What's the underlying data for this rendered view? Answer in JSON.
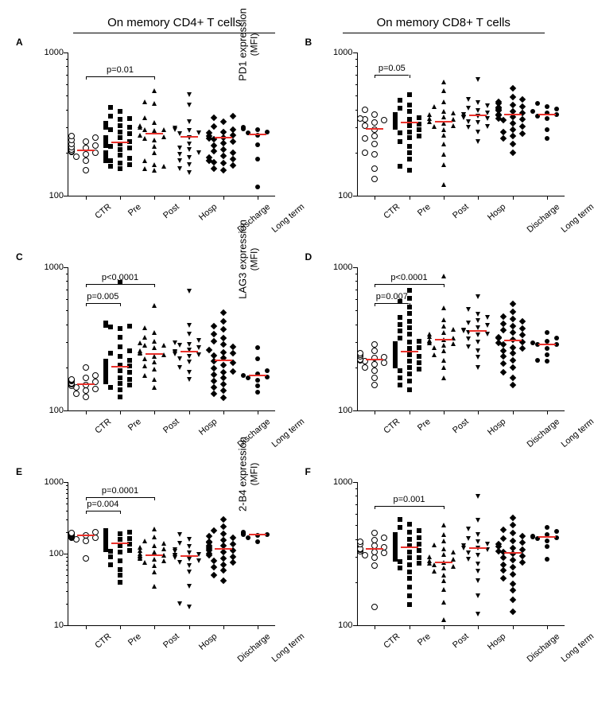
{
  "headers": {
    "left": "On memory CD4+ T cells",
    "right": "On memory CD8+ T cells"
  },
  "common": {
    "categories": [
      "CTR",
      "Pre",
      "Post",
      "Hosp",
      "Discharge",
      "Long term"
    ],
    "median_color": "#e8302a",
    "tick_fontsize": 11,
    "label_fontsize": 13
  },
  "markers": [
    {
      "type": "open-circle"
    },
    {
      "type": "square"
    },
    {
      "type": "triangle-up"
    },
    {
      "type": "triangle-down"
    },
    {
      "type": "diamond"
    },
    {
      "type": "circle"
    }
  ],
  "panels": [
    {
      "id": "A",
      "ylabel_main": "PD1 expression",
      "ylabel_sub": "(MFI)",
      "ylim": [
        100,
        1000
      ],
      "yticks": [
        100,
        1000
      ],
      "pvalues": [
        {
          "from": 0,
          "to": 2,
          "text": "p=0.01",
          "y": 680
        }
      ],
      "data": [
        {
          "values": [
            200,
            215,
            202,
            188,
            225,
            245,
            260,
            255,
            195,
            175,
            210,
            205,
            150,
            240,
            218,
            230
          ],
          "median": 207
        },
        {
          "values": [
            210,
            235,
            255,
            280,
            300,
            310,
            345,
            360,
            390,
            415,
            165,
            155,
            170,
            160,
            180,
            175,
            200,
            192,
            220,
            240,
            255,
            270,
            300,
            320,
            175,
            183,
            225,
            290,
            175,
            250,
            340,
            195,
            215,
            200,
            230,
            255,
            310,
            185,
            175
          ],
          "median": 235
        },
        {
          "values": [
            540,
            440,
            155,
            350,
            325,
            300,
            310,
            290,
            265,
            258,
            285,
            250,
            220,
            455,
            165,
            150,
            160,
            290,
            200,
            175,
            245
          ],
          "median": 272
        },
        {
          "values": [
            430,
            155,
            505,
            295,
            290,
            285,
            275,
            270,
            255,
            230,
            165,
            185,
            210,
            215,
            175,
            330,
            145,
            195,
            200
          ],
          "median": 257
        },
        {
          "values": [
            180,
            175,
            360,
            162,
            350,
            205,
            330,
            305,
            290,
            280,
            275,
            265,
            260,
            255,
            252,
            247,
            240,
            232,
            155,
            225,
            150,
            190,
            175,
            200,
            185,
            170,
            172,
            210
          ],
          "median": 255
        },
        {
          "values": [
            300,
            290,
            293,
            280,
            275,
            265,
            228,
            180,
            115
          ],
          "median": 268
        }
      ]
    },
    {
      "id": "B",
      "ylabel_main": "PD1 expression",
      "ylabel_sub": "(MFI)",
      "ylim": [
        100,
        1000
      ],
      "yticks": [
        100,
        1000
      ],
      "pvalues": [
        {
          "from": 0,
          "to": 1,
          "text": "p=0.05",
          "y": 700
        }
      ],
      "data": [
        {
          "values": [
            400,
            370,
            340,
            335,
            325,
            310,
            290,
            260,
            230,
            195,
            155,
            130,
            345,
            250,
            200
          ],
          "median": 293
        },
        {
          "values": [
            510,
            465,
            430,
            410,
            390,
            370,
            360,
            355,
            350,
            345,
            340,
            335,
            332,
            328,
            325,
            322,
            320,
            318,
            315,
            310,
            300,
            280,
            260,
            240,
            220,
            200,
            180,
            160,
            150,
            365,
            355,
            340,
            325,
            315,
            300,
            290,
            275,
            255
          ],
          "median": 325
        },
        {
          "values": [
            620,
            540,
            455,
            420,
            390,
            380,
            370,
            355,
            345,
            330,
            320,
            305,
            290,
            265,
            230,
            195,
            165,
            120,
            310,
            340
          ],
          "median": 330
        },
        {
          "values": [
            650,
            470,
            445,
            425,
            410,
            395,
            380,
            370,
            360,
            350,
            330,
            305,
            280,
            240,
            355,
            345,
            370,
            300,
            325
          ],
          "median": 365
        },
        {
          "values": [
            560,
            490,
            470,
            450,
            440,
            430,
            420,
            415,
            410,
            400,
            390,
            380,
            370,
            355,
            345,
            335,
            320,
            305,
            290,
            280,
            270,
            260,
            250,
            230,
            200,
            395,
            365,
            340
          ],
          "median": 370
        },
        {
          "values": [
            440,
            420,
            405,
            390,
            380,
            370,
            360,
            345,
            290,
            250
          ],
          "median": 370
        }
      ]
    },
    {
      "id": "C",
      "ylabel_main": "LAG3 expression",
      "ylabel_sub": "(MFI)",
      "ylim": [
        100,
        1000
      ],
      "yticks": [
        100,
        1000
      ],
      "pvalues": [
        {
          "from": 0,
          "to": 1,
          "text": "p=0.005",
          "y": 560
        },
        {
          "from": 0,
          "to": 2,
          "text": "p<0.0001",
          "y": 760
        }
      ],
      "data": [
        {
          "values": [
            175,
            170,
            165,
            162,
            160,
            158,
            155,
            153,
            151,
            148,
            145,
            142,
            138,
            130,
            125,
            200
          ],
          "median": 153
        },
        {
          "values": [
            780,
            410,
            395,
            390,
            385,
            375,
            325,
            280,
            260,
            250,
            240,
            225,
            220,
            218,
            215,
            211,
            210,
            208,
            205,
            200,
            195,
            190,
            185,
            180,
            175,
            170,
            165,
            160,
            155,
            150,
            145,
            140,
            125,
            215,
            200,
            185,
            175,
            165,
            158
          ],
          "median": 203
        },
        {
          "values": [
            540,
            380,
            350,
            325,
            305,
            295,
            285,
            275,
            260,
            250,
            245,
            240,
            230,
            218,
            205,
            195,
            175,
            165,
            145,
            285,
            255
          ],
          "median": 248
        },
        {
          "values": [
            680,
            395,
            340,
            310,
            295,
            285,
            275,
            265,
            255,
            248,
            240,
            230,
            218,
            200,
            185,
            165,
            290,
            258,
            245
          ],
          "median": 258
        },
        {
          "values": [
            480,
            420,
            390,
            370,
            340,
            320,
            305,
            290,
            278,
            265,
            255,
            243,
            232,
            220,
            208,
            198,
            188,
            178,
            168,
            160,
            152,
            145,
            138,
            130,
            122,
            250,
            215,
            185
          ],
          "median": 225
        },
        {
          "values": [
            275,
            230,
            190,
            180,
            175,
            172,
            168,
            162,
            148,
            135
          ],
          "median": 175
        }
      ]
    },
    {
      "id": "D",
      "ylabel_main": "LAG3 expression",
      "ylabel_sub": "(MFI)",
      "ylim": [
        100,
        1000
      ],
      "yticks": [
        100,
        1000
      ],
      "pvalues": [
        {
          "from": 0,
          "to": 1,
          "text": "p=0.007",
          "y": 560
        },
        {
          "from": 0,
          "to": 2,
          "text": "p<0.0001",
          "y": 760
        }
      ],
      "data": [
        {
          "values": [
            290,
            260,
            250,
            245,
            240,
            236,
            232,
            228,
            224,
            220,
            215,
            210,
            200,
            190,
            170,
            150
          ],
          "median": 227
        },
        {
          "values": [
            690,
            605,
            575,
            530,
            475,
            445,
            420,
            400,
            380,
            360,
            340,
            320,
            305,
            292,
            280,
            270,
            260,
            252,
            245,
            240,
            235,
            230,
            225,
            220,
            215,
            210,
            205,
            200,
            195,
            190,
            180,
            170,
            160,
            150,
            140,
            300,
            275,
            250,
            228
          ],
          "median": 258
        },
        {
          "values": [
            870,
            520,
            430,
            390,
            368,
            352,
            340,
            330,
            320,
            312,
            305,
            298,
            292,
            285,
            275,
            260,
            245,
            225,
            200,
            170,
            310
          ],
          "median": 312
        },
        {
          "values": [
            620,
            510,
            470,
            445,
            425,
            410,
            395,
            380,
            365,
            350,
            335,
            318,
            300,
            280,
            260,
            235,
            200,
            360,
            340
          ],
          "median": 360
        },
        {
          "values": [
            555,
            490,
            455,
            435,
            418,
            402,
            388,
            375,
            362,
            350,
            338,
            325,
            312,
            300,
            288,
            275,
            262,
            250,
            238,
            225,
            212,
            200,
            185,
            170,
            150,
            320,
            295,
            270
          ],
          "median": 307
        },
        {
          "values": [
            350,
            320,
            305,
            295,
            290,
            288,
            270,
            245,
            220,
            225
          ],
          "median": 290
        }
      ]
    },
    {
      "id": "E",
      "ylabel_main": "2-B4 expression",
      "ylabel_sub": "(MFI)",
      "ylim": [
        10,
        1000
      ],
      "yticks": [
        10,
        100,
        1000
      ],
      "pvalues": [
        {
          "from": 0,
          "to": 1,
          "text": "p=0.004",
          "y": 400
        },
        {
          "from": 0,
          "to": 2,
          "text": "p=0.0001",
          "y": 620
        }
      ],
      "data": [
        {
          "values": [
            200,
            195,
            192,
            188,
            185,
            182,
            180,
            178,
            175,
            172,
            170,
            168,
            165,
            160,
            150,
            85
          ],
          "median": 179
        },
        {
          "values": [
            210,
            200,
            192,
            185,
            180,
            175,
            172,
            170,
            168,
            165,
            162,
            160,
            155,
            150,
            145,
            140,
            135,
            130,
            125,
            120,
            115,
            110,
            108,
            90,
            80,
            70,
            60,
            50,
            40,
            172,
            160,
            148,
            135,
            120,
            105,
            165,
            150,
            138,
            125
          ],
          "median": 140
        },
        {
          "values": [
            220,
            170,
            150,
            140,
            130,
            122,
            116,
            110,
            105,
            100,
            96,
            92,
            88,
            84,
            80,
            75,
            68,
            55,
            35,
            95,
            85
          ],
          "median": 96
        },
        {
          "values": [
            185,
            160,
            140,
            125,
            115,
            108,
            102,
            97,
            92,
            88,
            84,
            80,
            75,
            68,
            55,
            35,
            20,
            18,
            94
          ],
          "median": 92
        },
        {
          "values": [
            300,
            240,
            210,
            190,
            175,
            165,
            155,
            148,
            142,
            136,
            130,
            124,
            118,
            112,
            106,
            100,
            95,
            90,
            85,
            80,
            75,
            70,
            65,
            58,
            50,
            42,
            128,
            110
          ],
          "median": 118
        },
        {
          "values": [
            200,
            195,
            192,
            190,
            188,
            186,
            183,
            180,
            165,
            145
          ],
          "median": 185
        }
      ]
    },
    {
      "id": "F",
      "ylabel_main": "2-B4 expression",
      "ylabel_sub": "(MFI)",
      "ylim": [
        100,
        1000
      ],
      "yticks": [
        100,
        1000
      ],
      "pvalues": [
        {
          "from": 0,
          "to": 2,
          "text": "p=0.001",
          "y": 680
        }
      ],
      "data": [
        {
          "values": [
            440,
            410,
            395,
            382,
            370,
            360,
            350,
            342,
            335,
            330,
            325,
            320,
            310,
            295,
            260,
            135
          ],
          "median": 340
        },
        {
          "values": [
            545,
            505,
            480,
            460,
            445,
            432,
            420,
            410,
            400,
            390,
            382,
            375,
            368,
            362,
            356,
            350,
            344,
            338,
            332,
            326,
            320,
            313,
            305,
            297,
            288,
            278,
            266,
            252,
            235,
            212,
            185,
            160,
            140,
            380,
            360,
            340,
            318,
            295,
            270
          ],
          "median": 350
        },
        {
          "values": [
            500,
            430,
            390,
            363,
            342,
            325,
            312,
            300,
            290,
            282,
            276,
            270,
            264,
            258,
            250,
            240,
            225,
            205,
            178,
            145,
            110
          ],
          "median": 276
        },
        {
          "values": [
            790,
            540,
            470,
            430,
            405,
            385,
            370,
            358,
            346,
            335,
            322,
            308,
            290,
            268,
            240,
            205,
            160,
            120,
            344
          ],
          "median": 345
        },
        {
          "values": [
            560,
            500,
            465,
            440,
            420,
            404,
            390,
            378,
            367,
            356,
            346,
            336,
            326,
            316,
            306,
            296,
            286,
            276,
            265,
            254,
            242,
            228,
            212,
            195,
            175,
            150,
            125,
            330
          ],
          "median": 321
        },
        {
          "values": [
            480,
            450,
            430,
            420,
            415,
            410,
            405,
            390,
            355,
            290
          ],
          "median": 412
        }
      ]
    }
  ]
}
